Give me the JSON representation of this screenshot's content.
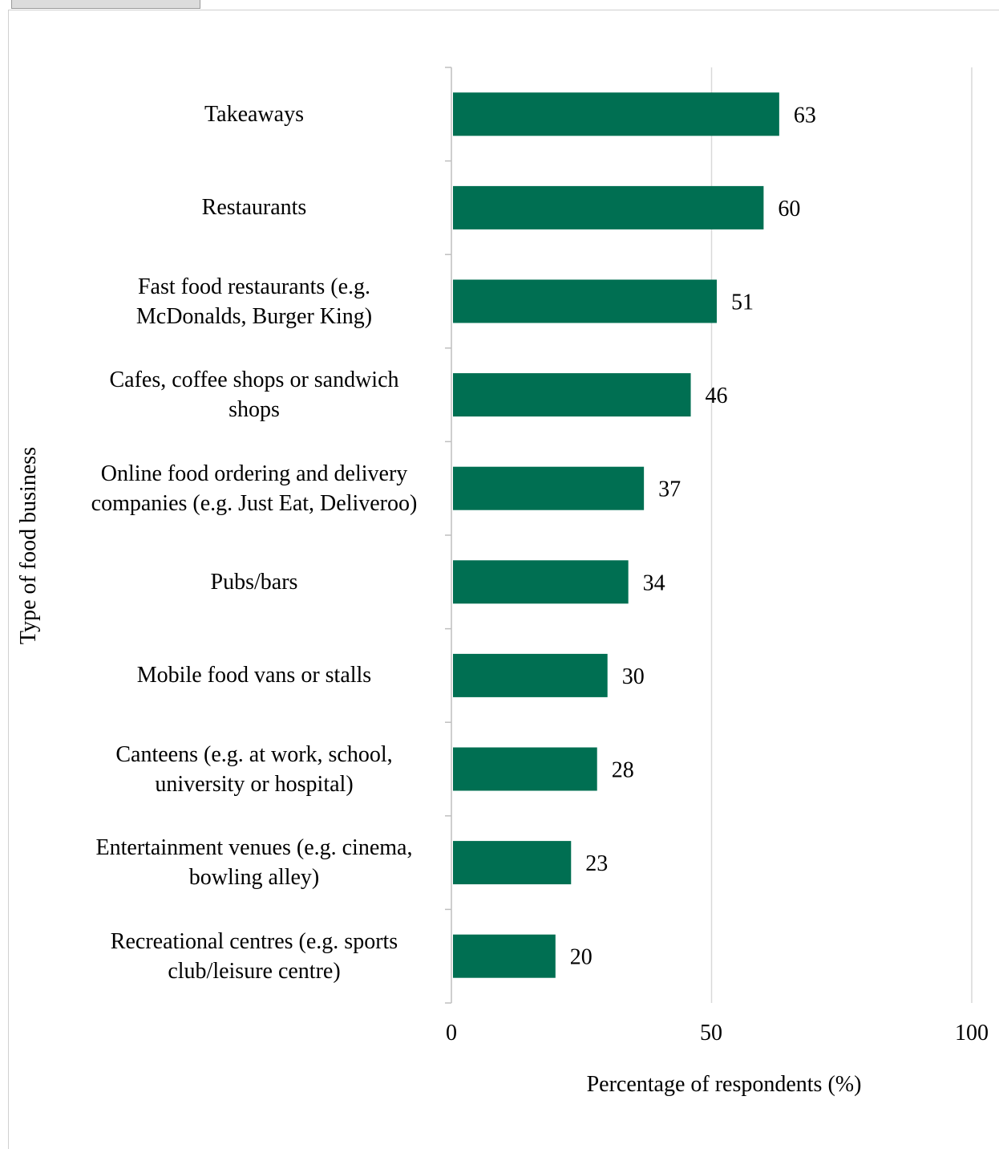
{
  "colors": {
    "bar": "#006f52",
    "grid": "#d9d9d9",
    "axis": "#bfbfbf"
  },
  "chart_data": {
    "type": "bar",
    "orientation": "horizontal",
    "categories": [
      "Takeaways",
      "Restaurants",
      "Fast food restaurants (e.g. McDonalds, Burger King)",
      "Cafes, coffee shops or sandwich shops",
      "Online food ordering and delivery companies (e.g. Just Eat, Deliveroo)",
      "Pubs/bars",
      "Mobile food vans or stalls",
      "Canteens (e.g. at work, school, university or hospital)",
      "Entertainment venues (e.g. cinema, bowling alley)",
      "Recreational centres (e.g. sports club/leisure centre)"
    ],
    "values": [
      63,
      60,
      51,
      46,
      37,
      34,
      30,
      28,
      23,
      20
    ],
    "xlabel": "Percentage of respondents (%)",
    "ylabel": "Type of food business",
    "xlim": [
      0,
      100
    ],
    "xticks": [
      "0",
      "50",
      "100"
    ],
    "grid": true,
    "data_labels": true
  }
}
